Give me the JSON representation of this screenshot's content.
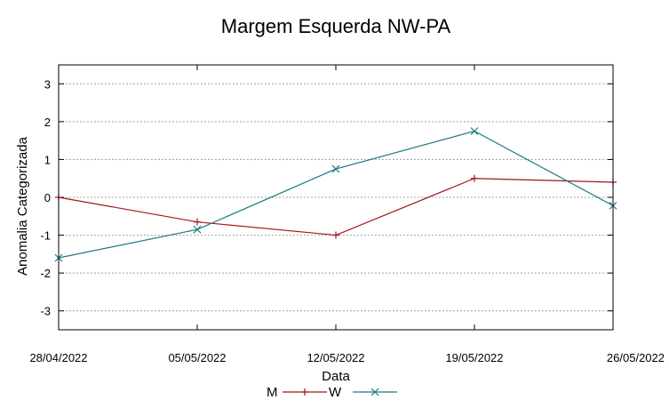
{
  "chart_data": {
    "type": "line",
    "title": "Margem Esquerda NW-PA",
    "xlabel": "Data",
    "ylabel": "Anomalia Categorizada",
    "categories": [
      "28/04/2022",
      "05/05/2022",
      "12/05/2022",
      "19/05/2022",
      "26/05/2022"
    ],
    "ylim": [
      -3.5,
      3.5
    ],
    "yticks": [
      -3,
      -2,
      -1,
      0,
      1,
      2,
      3
    ],
    "ytick_labels": [
      "-3",
      "-2",
      "-1",
      "0",
      "1",
      "2",
      "3"
    ],
    "grid": true,
    "legend_position": "bottom",
    "series": [
      {
        "name": "M",
        "color": "#a0171c",
        "marker": "plus",
        "values": [
          0,
          -0.65,
          -1,
          0.5,
          0.4
        ]
      },
      {
        "name": "W",
        "color": "#1b7a80",
        "marker": "cross",
        "values": [
          -1.6,
          -0.85,
          0.75,
          1.75,
          -0.22
        ]
      }
    ]
  }
}
